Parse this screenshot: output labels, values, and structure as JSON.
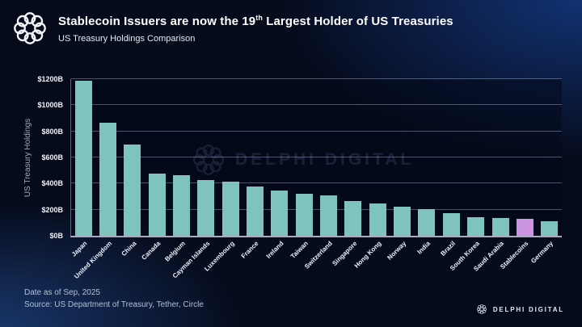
{
  "header": {
    "title_prefix": "Stablecoin Issuers are now the 19",
    "title_sup": "th",
    "title_suffix": " Largest Holder of US Treasuries",
    "subtitle": "US Treasury Holdings Comparison"
  },
  "chart_data": {
    "type": "bar",
    "title": "US Treasury Holdings Comparison",
    "xlabel": "",
    "ylabel": "US Treasury Holdings",
    "ylim": [
      0,
      1200
    ],
    "ytick_step": 200,
    "yticks": [
      "$0B",
      "$200B",
      "$400B",
      "$600B",
      "$800B",
      "$1000B",
      "$1200B"
    ],
    "grid": true,
    "legend": false,
    "categories": [
      "Japan",
      "United Kingdom",
      "China",
      "Canada",
      "Belgium",
      "Cayman Islands",
      "Luxembourg",
      "France",
      "Ireland",
      "Taiwan",
      "Switzerland",
      "Singapore",
      "Hong Kong",
      "Norway",
      "India",
      "Brazil",
      "South Korea",
      "Saudi Arabia",
      "Stablecoins",
      "Germany"
    ],
    "values": [
      1190,
      865,
      700,
      475,
      465,
      425,
      415,
      375,
      345,
      320,
      310,
      265,
      250,
      220,
      205,
      175,
      140,
      135,
      130,
      110
    ],
    "units": "billions USD",
    "highlight_index": 18,
    "bar_color": "#7ec4bd",
    "highlight_color": "#cb93e1"
  },
  "watermark": {
    "text": "DELPHI DIGITAL"
  },
  "footer": {
    "date": "Date as of Sep, 2025",
    "source": "Source: US Department of Treasury, Tether, Circle",
    "brand": "DELPHI DIGITAL"
  },
  "colors": {
    "background": "#060b1c",
    "accent_glow": "#12347 6",
    "bar": "#7ec4bd",
    "highlight": "#cb93e1",
    "gridline": "rgba(155,155,190,0.5)",
    "text_primary": "#ffffff",
    "text_muted": "#b3c0d8"
  }
}
